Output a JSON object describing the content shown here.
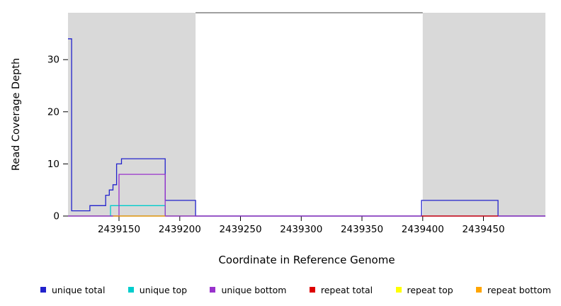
{
  "chart_data": {
    "type": "line",
    "step_style": true,
    "title": "",
    "xlabel": "Coordinate in Reference Genome",
    "ylabel": "Read Coverage Depth",
    "xlim": [
      2439108,
      2439501
    ],
    "ylim": [
      0,
      39
    ],
    "xticks": [
      2439150,
      2439200,
      2439250,
      2439300,
      2439350,
      2439400,
      2439450
    ],
    "yticks": [
      0,
      10,
      20,
      30
    ],
    "shade_color": "#d9d9d9",
    "shaded_regions": [
      [
        2439108,
        2439213
      ],
      [
        2439400,
        2439501
      ]
    ],
    "legend_position": "bottom",
    "series": [
      {
        "name": "unique total",
        "color": "#2222cc",
        "vertices": [
          [
            2439108,
            34
          ],
          [
            2439111,
            34
          ],
          [
            2439111,
            1
          ],
          [
            2439126,
            1
          ],
          [
            2439126,
            2
          ],
          [
            2439139,
            2
          ],
          [
            2439139,
            4
          ],
          [
            2439142,
            4
          ],
          [
            2439142,
            5
          ],
          [
            2439145,
            5
          ],
          [
            2439145,
            6
          ],
          [
            2439148,
            6
          ],
          [
            2439148,
            10
          ],
          [
            2439152,
            10
          ],
          [
            2439152,
            11
          ],
          [
            2439188,
            11
          ],
          [
            2439188,
            3
          ],
          [
            2439213,
            3
          ],
          [
            2439213,
            0
          ],
          [
            2439399,
            0
          ],
          [
            2439399,
            3
          ],
          [
            2439462,
            3
          ],
          [
            2439462,
            0
          ],
          [
            2439501,
            0
          ]
        ]
      },
      {
        "name": "unique top",
        "color": "#00cdcd",
        "vertices": [
          [
            2439143,
            0
          ],
          [
            2439143,
            2
          ],
          [
            2439188,
            2
          ],
          [
            2439188,
            0
          ]
        ]
      },
      {
        "name": "unique bottom",
        "color": "#9932cc",
        "vertices": [
          [
            2439108,
            0
          ],
          [
            2439150,
            0
          ],
          [
            2439150,
            8
          ],
          [
            2439188,
            8
          ],
          [
            2439188,
            0
          ],
          [
            2439501,
            0
          ]
        ]
      },
      {
        "name": "repeat total",
        "color": "#dd0000",
        "vertices": [
          [
            2439399,
            0
          ],
          [
            2439462,
            0
          ]
        ]
      },
      {
        "name": "repeat top",
        "color": "#ffff00",
        "vertices": []
      },
      {
        "name": "repeat bottom",
        "color": "#ffa500",
        "vertices": [
          [
            2439145,
            0
          ],
          [
            2439188,
            0
          ]
        ]
      }
    ]
  }
}
